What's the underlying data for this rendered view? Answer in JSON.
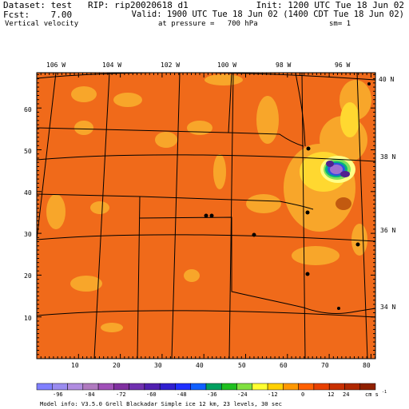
{
  "header": {
    "dataset_line": "Dataset: test   RIP: rip20020618 d1",
    "fcst_line": "Fcst:    7.00",
    "field_line": "Vertical velocity",
    "init_line": "Init: 1200 UTC Tue 18 Jun 02",
    "valid_line": "Valid: 1900 UTC Tue 18 Jun 02 (1400 CDT Tue 18 Jun 02)",
    "pressure_line": "at pressure =   700 hPa",
    "sm_line": "sm= 1"
  },
  "map": {
    "top_lon_labels": [
      "106 W",
      "104 W",
      "102 W",
      "100 W",
      "98 W",
      "96 W"
    ],
    "right_lat_labels": [
      "40 N",
      "38 N",
      "36 N",
      "34 N"
    ],
    "left_grid_labels": [
      "60",
      "50",
      "40",
      "30",
      "20",
      "10"
    ],
    "bottom_grid_labels": [
      "10",
      "20",
      "30",
      "40",
      "50",
      "60",
      "70",
      "80"
    ],
    "background_color": "#f06a1a",
    "weak_ascent_color": "#f8a62a",
    "strong_ascent_colors": [
      "#ffd830",
      "#ffff88",
      "#7fe05a",
      "#00b080",
      "#3050e0",
      "#a070d0"
    ],
    "descent_color": "#c25a10"
  },
  "colorbar": {
    "colors": [
      "#8080ff",
      "#9a8cf0",
      "#b08ce0",
      "#b07ac0",
      "#a050b8",
      "#8030a0",
      "#7030b0",
      "#5020b0",
      "#3020d0",
      "#2030ff",
      "#1060ff",
      "#00a060",
      "#20c020",
      "#80e040",
      "#ffff30",
      "#ffd000",
      "#ff9800",
      "#ff6000",
      "#e84000",
      "#c83000",
      "#b02800",
      "#902000"
    ],
    "tick_labels": [
      "-96",
      "-84",
      "-72",
      "-60",
      "-48",
      "-36",
      "-24",
      "-12",
      "0",
      "12",
      "24"
    ],
    "units": "cm s",
    "units_exponent": "-1"
  },
  "footer": {
    "model_info": "Model info: V3.5.0  Grell    Blackadar  Simple ice   12 km,  23 levels,  30 sec"
  }
}
